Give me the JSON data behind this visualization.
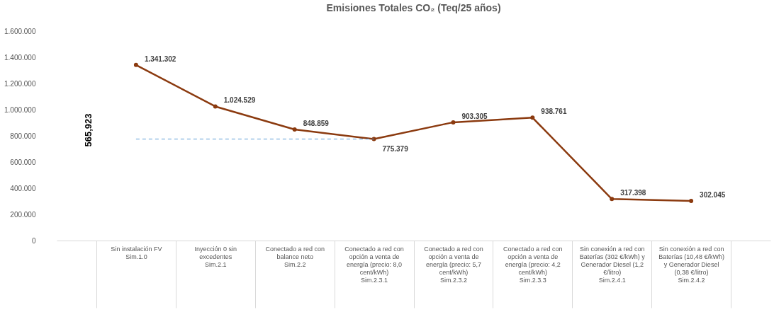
{
  "chart_data": {
    "type": "line",
    "title": "Emisiones Totales CO₂ (Teq/25 años)",
    "categories": [
      "Sin instalación FV\nSim.1.0",
      "Inyección 0 sin excedentes\nSim.2.1",
      "Conectado a red con balance neto\nSim.2.2",
      "Conectado a red con opción a venta de energía (precio: 8,0 cent/kWh)\nSim.2.3.1",
      "Conectado a red con opción a venta de energía (precio: 5,7 cent/kWh)\nSim.2.3.2",
      "Conectado a red con opción a venta de energía (precio: 4,2 cent/kWh)\nSim.2.3.3",
      "Sin conexión a red con Baterías (302 €/kWh) y Generador Diesel (1,2 €/litro)\nSim.2.4.1",
      "Sin conexión a red con Baterías (10,48 €/kWh) y Generador Diesel (0,38 €/litro)\nSim.2.4.2"
    ],
    "series": [
      {
        "color": "#8b3a0f",
        "values": [
          1341302,
          1024529,
          848859,
          775379,
          903305,
          938761,
          317398,
          302045
        ],
        "value_labels": [
          "1.341.302",
          "1.024.529",
          "848.859",
          "775.379",
          "903.305",
          "938.761",
          "317.398",
          "302.045"
        ]
      }
    ],
    "ylim": [
      0,
      1600000
    ],
    "yticks": [
      {
        "value": 0,
        "label": "0"
      },
      {
        "value": 200000,
        "label": "200.000"
      },
      {
        "value": 400000,
        "label": "400.000"
      },
      {
        "value": 600000,
        "label": "600.000"
      },
      {
        "value": 800000,
        "label": "800.000"
      },
      {
        "value": 1000000,
        "label": "1.000.000"
      },
      {
        "value": 1200000,
        "label": "1.200.000"
      },
      {
        "value": 1400000,
        "label": "1.400.000"
      },
      {
        "value": 1600000,
        "label": "1.600.000"
      }
    ],
    "ref_lines": [
      {
        "axis": "y",
        "value": 775379,
        "color": "#5b9bd5",
        "line_style": "dashed"
      }
    ],
    "annotations": [
      "565,923"
    ],
    "marker": "circle",
    "line_style": "solid",
    "grid": false
  }
}
